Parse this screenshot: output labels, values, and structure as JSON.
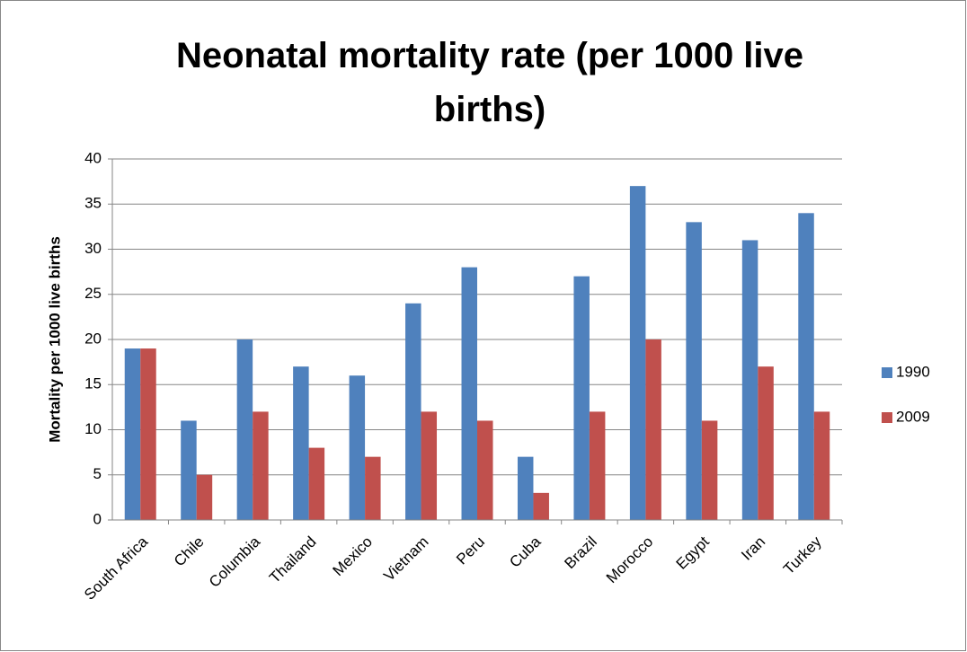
{
  "chart_data": {
    "type": "bar",
    "title": "Neonatal mortality rate (per 1000 live births)",
    "y_label": "Mortality per 1000 live births",
    "categories": [
      "South Africa",
      "Chile",
      "Columbia",
      "Thailand",
      "Mexico",
      "Vietnam",
      "Peru",
      "Cuba",
      "Brazil",
      "Morocco",
      "Egypt",
      "Iran",
      "Turkey"
    ],
    "series": [
      {
        "name": "1990",
        "color": "#4f81bd",
        "values": [
          19,
          11,
          20,
          17,
          16,
          24,
          28,
          7,
          27,
          37,
          33,
          31,
          34
        ]
      },
      {
        "name": "2009",
        "color": "#c0504d",
        "values": [
          19,
          5,
          12,
          8,
          7,
          12,
          11,
          3,
          12,
          20,
          11,
          17,
          12
        ]
      }
    ],
    "ylim": [
      0,
      40
    ],
    "yticks": [
      0,
      5,
      10,
      15,
      20,
      25,
      30,
      35,
      40
    ],
    "grid": true,
    "legend": "right"
  }
}
